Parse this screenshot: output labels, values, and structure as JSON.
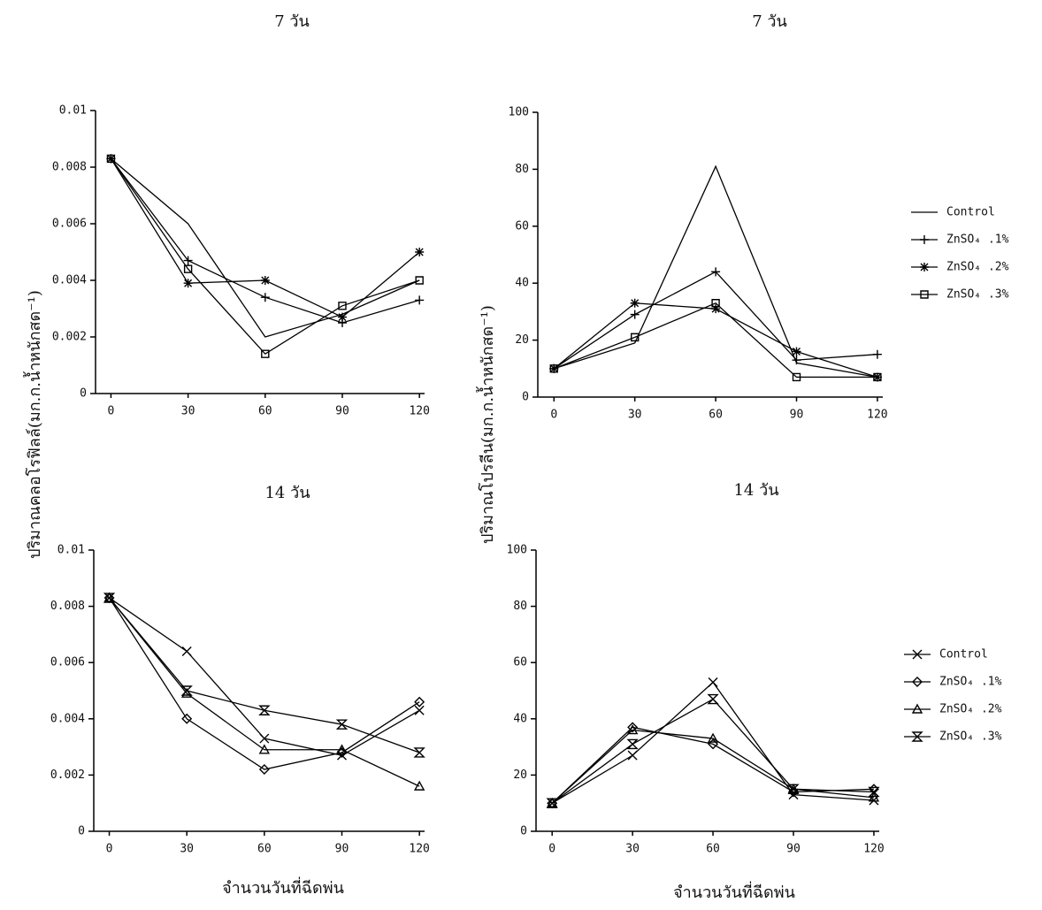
{
  "chart_data": [
    {
      "type": "line",
      "title": "7 วัน",
      "y_label": "ปริมาณคลอโรฟิลล์(มก.ก.น้ำหนักสด⁻¹)",
      "x": [
        0,
        30,
        60,
        90,
        120
      ],
      "xlim": [
        -6,
        122
      ],
      "xticks": [
        0,
        30,
        60,
        90,
        120
      ],
      "ylim": [
        0,
        0.01
      ],
      "yticks": [
        0,
        0.002,
        0.004,
        0.006,
        0.008,
        0.01
      ],
      "series": [
        {
          "color": "#000000",
          "marker": "none",
          "values": [
            0.0083,
            0.006,
            0.002,
            0.0028,
            0.004
          ]
        },
        {
          "color": "#000000",
          "marker": "plus",
          "values": [
            0.0083,
            0.0047,
            0.0034,
            0.0025,
            0.0033
          ]
        },
        {
          "color": "#000000",
          "marker": "star",
          "values": [
            0.0083,
            0.0039,
            0.004,
            0.0027,
            0.005
          ]
        },
        {
          "color": "#000000",
          "marker": "square",
          "values": [
            0.0083,
            0.0044,
            0.0014,
            0.0031,
            0.004
          ]
        }
      ]
    },
    {
      "type": "line",
      "title": "7 วัน",
      "y_label": "ปริมาณโปรลีน(มก.ก.น้ำหนักสด⁻¹)",
      "x": [
        0,
        30,
        60,
        90,
        120
      ],
      "xlim": [
        -6,
        122
      ],
      "xticks": [
        0,
        30,
        60,
        90,
        120
      ],
      "ylim": [
        0,
        100
      ],
      "yticks": [
        0,
        20,
        40,
        60,
        80,
        100
      ],
      "legend": "right",
      "series": [
        {
          "name": "Control",
          "color": "#000000",
          "marker": "none",
          "values": [
            10,
            19,
            81,
            12,
            7
          ]
        },
        {
          "name": "ZnSO₄ .1%",
          "color": "#000000",
          "marker": "plus",
          "values": [
            10,
            29,
            44,
            13,
            15
          ]
        },
        {
          "name": "ZnSO₄ .2%",
          "color": "#000000",
          "marker": "star",
          "values": [
            10,
            33,
            31,
            16,
            7
          ]
        },
        {
          "name": "ZnSO₄ .3%",
          "color": "#000000",
          "marker": "square",
          "values": [
            10,
            21,
            33,
            7,
            7
          ]
        }
      ]
    },
    {
      "type": "line",
      "title": "14 วัน",
      "x_label": "จำนวนวันที่ฉีดพ่น",
      "x": [
        0,
        30,
        60,
        90,
        120
      ],
      "xlim": [
        -6,
        122
      ],
      "xticks": [
        0,
        30,
        60,
        90,
        120
      ],
      "ylim": [
        0,
        0.01
      ],
      "yticks": [
        0,
        0.002,
        0.004,
        0.006,
        0.008,
        0.01
      ],
      "series": [
        {
          "color": "#000000",
          "marker": "x",
          "values": [
            0.0083,
            0.0064,
            0.0033,
            0.0027,
            0.0043
          ]
        },
        {
          "color": "#000000",
          "marker": "diamond",
          "values": [
            0.0083,
            0.004,
            0.0022,
            0.0028,
            0.0046
          ]
        },
        {
          "color": "#000000",
          "marker": "triangle",
          "values": [
            0.0083,
            0.0049,
            0.0029,
            0.0029,
            0.0016
          ]
        },
        {
          "color": "#000000",
          "marker": "hourglass",
          "values": [
            0.0083,
            0.005,
            0.0043,
            0.0038,
            0.0028
          ]
        }
      ]
    },
    {
      "type": "line",
      "title": "14 วัน",
      "x_label": "จำนวนวันที่ฉีดพ่น",
      "x": [
        0,
        30,
        60,
        90,
        120
      ],
      "xlim": [
        -6,
        122
      ],
      "xticks": [
        0,
        30,
        60,
        90,
        120
      ],
      "ylim": [
        0,
        100
      ],
      "yticks": [
        0,
        20,
        40,
        60,
        80,
        100
      ],
      "legend": "right",
      "series": [
        {
          "name": "Control",
          "color": "#000000",
          "marker": "x",
          "values": [
            10,
            27,
            53,
            13,
            11
          ]
        },
        {
          "name": "ZnSO₄ .1%",
          "color": "#000000",
          "marker": "diamond",
          "values": [
            10,
            37,
            31,
            14,
            15
          ]
        },
        {
          "name": "ZnSO₄ .2%",
          "color": "#000000",
          "marker": "triangle",
          "values": [
            10,
            36,
            33,
            15,
            12
          ]
        },
        {
          "name": "ZnSO₄ .3%",
          "color": "#000000",
          "marker": "hourglass",
          "values": [
            10,
            31,
            47,
            15,
            14
          ]
        }
      ]
    }
  ]
}
